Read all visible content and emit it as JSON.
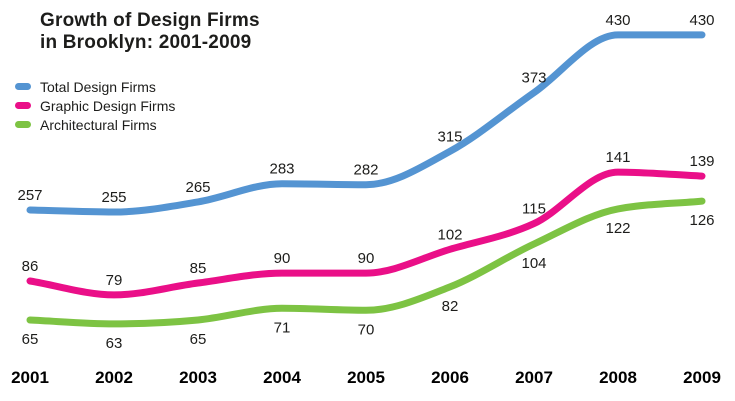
{
  "title_lines": [
    "Growth of Design Firms",
    "in Brooklyn: 2001-2009"
  ],
  "chart_data": {
    "type": "line",
    "title": "Growth of Design Firms in Brooklyn: 2001-2009",
    "x_labels": [
      "2001",
      "2002",
      "2003",
      "2004",
      "2005",
      "2006",
      "2007",
      "2008",
      "2009"
    ],
    "series": [
      {
        "name": "Total Design Firms",
        "color": "#5494D2",
        "values": [
          257,
          255,
          265,
          283,
          282,
          315,
          373,
          430,
          430
        ],
        "data_labels": "above"
      },
      {
        "name": "Graphic Design Firms",
        "color": "#EA0F88",
        "values": [
          86,
          79,
          85,
          90,
          90,
          102,
          115,
          141,
          139
        ],
        "data_labels": "above"
      },
      {
        "name": "Architectural Firms",
        "color": "#7DC343",
        "values": [
          65,
          63,
          65,
          71,
          70,
          82,
          104,
          122,
          126
        ],
        "data_labels": "below"
      }
    ],
    "legend_position": "top-left",
    "grid": false,
    "y_axis_visible": false,
    "data_label_color": "#1d1d1b",
    "x_label_color": "#000000"
  }
}
